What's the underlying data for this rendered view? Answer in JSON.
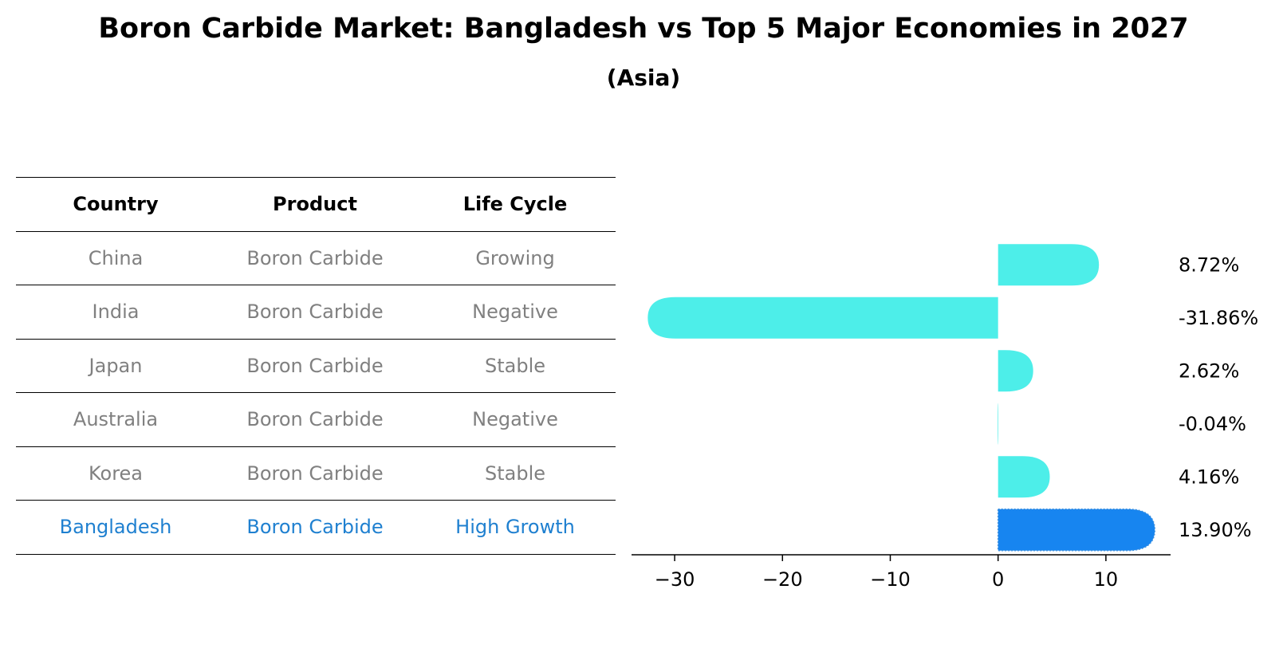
{
  "title": "Boron Carbide Market: Bangladesh vs Top 5 Major Economies in 2027",
  "subtitle": "(Asia)",
  "table": {
    "headers": [
      "Country",
      "Product",
      "Life Cycle"
    ],
    "rows": [
      [
        "China",
        "Boron Carbide",
        "Growing"
      ],
      [
        "India",
        "Boron Carbide",
        "Negative"
      ],
      [
        "Japan",
        "Boron Carbide",
        "Stable"
      ],
      [
        "Australia",
        "Boron Carbide",
        "Negative"
      ],
      [
        "Korea",
        "Boron Carbide",
        "Stable"
      ],
      [
        "Bangladesh",
        "Boron Carbide",
        "High Growth"
      ]
    ],
    "highlight_row": 5,
    "colors": {
      "normal_text": "#808080",
      "highlight_text": "#1f80d0"
    }
  },
  "chart_data": {
    "type": "bar",
    "orientation": "horizontal",
    "categories": [
      "China",
      "India",
      "Japan",
      "Australia",
      "Korea",
      "Bangladesh"
    ],
    "values": [
      8.72,
      -31.86,
      2.62,
      -0.04,
      4.16,
      13.9
    ],
    "value_labels": [
      "8.72%",
      "-31.86%",
      "2.62%",
      "-0.04%",
      "4.16%",
      "13.90%"
    ],
    "highlight_index": 5,
    "xlim": [
      -34,
      16
    ],
    "xticks": [
      -30,
      -20,
      -10,
      0,
      10
    ],
    "xtick_labels": [
      "−30",
      "−20",
      "−10",
      "0",
      "10"
    ],
    "xlabel": "",
    "ylabel": "",
    "grid": false,
    "colors": {
      "bar": "#4deee9",
      "highlight": "#1785f0",
      "axis": "#000000",
      "label": "#000000"
    }
  }
}
